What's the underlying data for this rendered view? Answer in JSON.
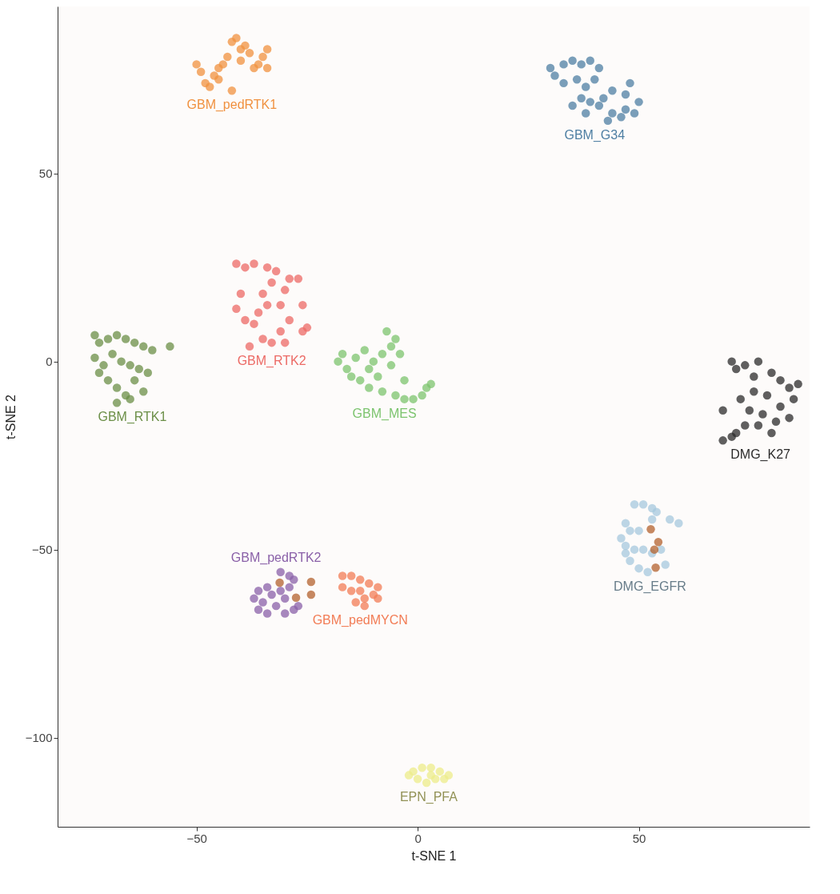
{
  "chart_data": {
    "type": "scatter",
    "xlabel": "t-SNE 1",
    "ylabel": "t-SNE 2",
    "xlim": [
      -81.4,
      88.6
    ],
    "ylim": [
      -123.7,
      94.4
    ],
    "xticks": [
      {
        "value": -50,
        "label": "−50"
      },
      0,
      50
    ],
    "yticks": [
      {
        "value": -100,
        "label": "−100"
      },
      {
        "value": -50,
        "label": "−50"
      },
      0,
      50
    ],
    "grid": false,
    "legend": false,
    "marker": "circle",
    "series": [
      {
        "name": "GBM_pedRTK1",
        "color": "#f0913f",
        "x": [
          -50,
          -49,
          -48,
          -47,
          -46,
          -45,
          -43,
          -42,
          -41,
          -40,
          -40,
          -38,
          -36,
          -35,
          -34,
          -34,
          -37,
          -42,
          -45,
          -39,
          -44
        ],
        "values": [
          79,
          77,
          74,
          73,
          76,
          78,
          81,
          85,
          86,
          83,
          80,
          82,
          79,
          81,
          83,
          78,
          78,
          72,
          75,
          84,
          79
        ]
      },
      {
        "name": "GBM_G34",
        "color": "#4e7fa3",
        "x": [
          30,
          31,
          33,
          35,
          37,
          39,
          41,
          33,
          36,
          38,
          40,
          42,
          44,
          47,
          48,
          50,
          49,
          46,
          44,
          41,
          39,
          37,
          35,
          38,
          43,
          47
        ],
        "values": [
          78,
          76,
          79,
          80,
          79,
          80,
          78,
          74,
          75,
          73,
          75,
          70,
          72,
          71,
          74,
          69,
          66,
          65,
          66,
          68,
          69,
          70,
          68,
          66,
          64,
          67
        ]
      },
      {
        "name": "GBM_RTK2",
        "color": "#ec6a65",
        "x": [
          -41,
          -39,
          -37,
          -34,
          -32,
          -29,
          -27,
          -30,
          -33,
          -35,
          -40,
          -41,
          -39,
          -36,
          -34,
          -31,
          -29,
          -31,
          -33,
          -35,
          -37,
          -38,
          -26,
          -26,
          -25,
          -30
        ],
        "values": [
          26,
          25,
          26,
          25,
          24,
          22,
          22,
          19,
          21,
          18,
          18,
          14,
          11,
          13,
          15,
          15,
          11,
          8,
          5,
          6,
          10,
          4,
          15,
          8,
          9,
          5
        ]
      },
      {
        "name": "GBM_RTK1",
        "color": "#6b8f47",
        "x": [
          -73,
          -72,
          -70,
          -68,
          -66,
          -64,
          -62,
          -60,
          -56,
          -73,
          -71,
          -69,
          -67,
          -65,
          -63,
          -61,
          -70,
          -68,
          -66,
          -68,
          -65,
          -62,
          -64,
          -72
        ],
        "values": [
          7,
          5,
          6,
          7,
          6,
          5,
          4,
          3,
          4,
          1,
          -1,
          2,
          0,
          -1,
          -2,
          -3,
          -5,
          -7,
          -9,
          -11,
          -10,
          -8,
          -5,
          -3
        ]
      },
      {
        "name": "GBM_MES",
        "color": "#7cc46e",
        "x": [
          -17,
          -18,
          -16,
          -14,
          -15,
          -13,
          -11,
          -10,
          -8,
          -6,
          -7,
          -5,
          -4,
          -6,
          -9,
          -11,
          -8,
          -5,
          -3,
          -1,
          1,
          2,
          3,
          -3,
          -12
        ],
        "values": [
          2,
          0,
          -2,
          1,
          -4,
          -5,
          -2,
          0,
          2,
          4,
          8,
          6,
          2,
          -1,
          -4,
          -7,
          -8,
          -9,
          -10,
          -10,
          -9,
          -7,
          -6,
          -5,
          3
        ]
      },
      {
        "name": "DMG_K27",
        "color": "#2b2b2b",
        "x": [
          71,
          72,
          74,
          77,
          76,
          80,
          82,
          84,
          86,
          85,
          82,
          79,
          76,
          73,
          75,
          78,
          81,
          84,
          80,
          77,
          74,
          69,
          71,
          69,
          72
        ],
        "values": [
          0,
          -2,
          -1,
          0,
          -4,
          -3,
          -5,
          -7,
          -6,
          -10,
          -12,
          -9,
          -8,
          -10,
          -13,
          -14,
          -16,
          -15,
          -19,
          -17,
          -17,
          -13,
          -20,
          -21,
          -19
        ]
      },
      {
        "name": "DMG_EGFR",
        "color": "#a6c8dd",
        "x": [
          49,
          51,
          53,
          54,
          53,
          57,
          59,
          47,
          48,
          50,
          46,
          47,
          49,
          51,
          53,
          55,
          48,
          50,
          52,
          56,
          47
        ],
        "values": [
          -38,
          -38,
          -39,
          -40,
          -42,
          -42,
          -43,
          -43,
          -45,
          -45,
          -47,
          -49,
          -50,
          -50,
          -51,
          -50,
          -53,
          -55,
          -56,
          -54,
          -51
        ]
      },
      {
        "name": "GBM_pedRTK2",
        "color": "#8a60a8",
        "x": [
          -31,
          -29,
          -28,
          -34,
          -36,
          -37,
          -35,
          -33,
          -31,
          -30,
          -32,
          -36,
          -34,
          -30,
          -28,
          -27,
          -29
        ],
        "values": [
          -56,
          -57,
          -58,
          -60,
          -61,
          -63,
          -64,
          -62,
          -61,
          -63,
          -65,
          -66,
          -67,
          -67,
          -66,
          -65,
          -60
        ]
      },
      {
        "name": "GBM_pedMYCN",
        "color": "#f27c55",
        "x": [
          -17,
          -15,
          -13,
          -17,
          -15,
          -13,
          -11,
          -9,
          -10,
          -12,
          -14,
          -12,
          -9
        ],
        "values": [
          -57,
          -57,
          -58,
          -60,
          -61,
          -61,
          -59,
          -60,
          -62,
          -63,
          -64,
          -65,
          -63
        ]
      },
      {
        "name": "EPN_PFA",
        "color": "#ecec8a",
        "x": [
          -1,
          1,
          3,
          5,
          7,
          6,
          4,
          2,
          0,
          -2,
          3
        ],
        "values": [
          -109,
          -108,
          -108,
          -109,
          -110,
          -111,
          -111,
          -112,
          -111,
          -110,
          -110
        ]
      },
      {
        "color": "#b3612e",
        "x": [
          52.7,
          54.4,
          53.5,
          53.8,
          -31.2,
          -24.1,
          -27.5,
          -24.1
        ],
        "values": [
          -44.6,
          -48,
          -50,
          -54.8,
          -58.8,
          -58.6,
          -62.8,
          -62
        ]
      }
    ]
  }
}
